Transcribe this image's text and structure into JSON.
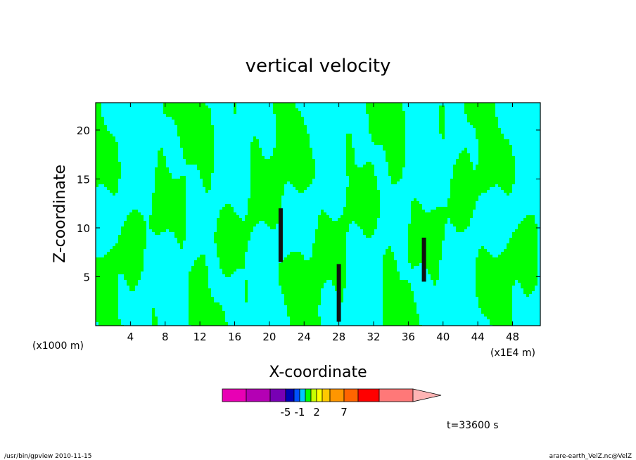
{
  "chart_data": {
    "type": "heatmap",
    "title": "vertical velocity",
    "xlabel": "X-coordinate",
    "ylabel": "Z-coordinate",
    "x_unit_left": "(x1000 m)",
    "x_unit_right": "(x1E4 m)",
    "xlim": [
      0,
      51.2
    ],
    "ylim": [
      0,
      22.8
    ],
    "x_ticks": [
      4,
      8,
      12,
      16,
      20,
      24,
      28,
      32,
      36,
      40,
      44,
      48
    ],
    "y_ticks": [
      5,
      10,
      15,
      20
    ],
    "colorbar": {
      "colors": [
        "#e800b4",
        "#b400b4",
        "#7800b4",
        "#0000b4",
        "#0050ff",
        "#00c8ff",
        "#00ff00",
        "#c8ff00",
        "#ffff00",
        "#ffc800",
        "#ff9600",
        "#ff6400",
        "#ff0000",
        "#ff7878",
        "#ffb4b4"
      ],
      "tick_labels": [
        {
          "label": "-5",
          "index": 3
        },
        {
          "label": "-1",
          "index": 5
        },
        {
          "label": "2",
          "index": 8
        },
        {
          "label": "7",
          "index": 11
        }
      ]
    },
    "field_colors": {
      "positive_weak": "#00ff00",
      "negative_weak": "#00ffff"
    },
    "time_label": "t=33600 s"
  },
  "footer": {
    "left": "/usr/bin/gpview   2010-11-15",
    "right": "arare-earth_VelZ.nc@VelZ"
  }
}
